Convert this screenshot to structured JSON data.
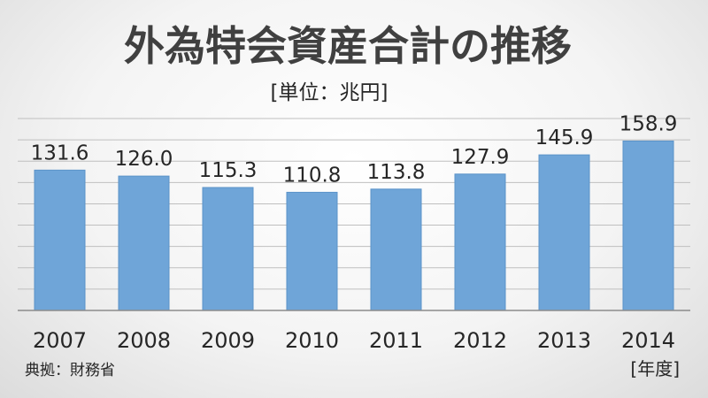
{
  "chart_data": {
    "type": "bar",
    "title": "外為特会資産合計の推移",
    "unit_label": "[単位：兆円]",
    "source": "典拠：財務省",
    "xlabel": "[年度]",
    "ylabel": "",
    "categories": [
      "2007",
      "2008",
      "2009",
      "2010",
      "2011",
      "2012",
      "2013",
      "2014"
    ],
    "values": [
      131.6,
      126.0,
      115.3,
      110.8,
      113.8,
      127.9,
      145.9,
      158.9
    ],
    "data_labels": [
      "131.6",
      "126.0",
      "115.3",
      "110.8",
      "113.8",
      "127.9",
      "145.9",
      "158.9"
    ],
    "ylim": [
      0,
      180
    ],
    "grid": true,
    "legend": "none",
    "colors": {
      "bar": "#6fa5d8",
      "bar_edge": "#5b93c9",
      "grid": "#bfbfbf",
      "axis": "#8c8c8c"
    }
  }
}
